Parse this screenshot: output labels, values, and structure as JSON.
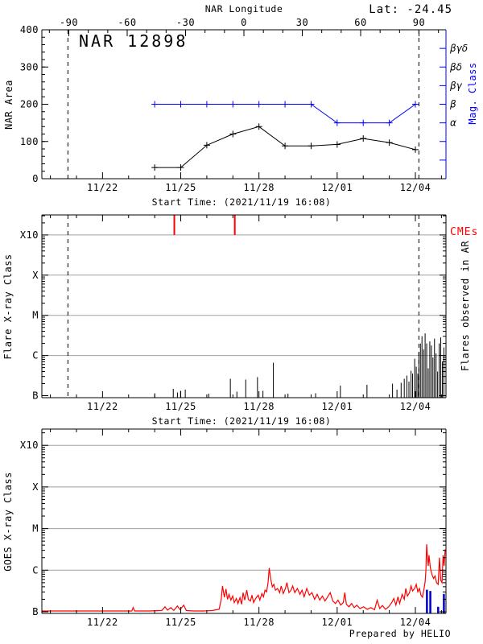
{
  "header": {
    "lat_label": "Lat: -24.45"
  },
  "footer": {
    "credit": "Prepared by HELIO"
  },
  "chart_data": [
    {
      "id": "nar_area_panel",
      "type": "line",
      "title": "NAR 12898",
      "ylabel": "NAR Area",
      "xlabel": "Start Time: (2021/11/19 16:08)",
      "ylim": [
        0,
        400
      ],
      "y_ticks": [
        0,
        100,
        200,
        300,
        400
      ],
      "y_minor_step": 20,
      "xlim_days": [
        0,
        15.5
      ],
      "x_ticks": [
        {
          "day": 2.327,
          "label": "11/22"
        },
        {
          "day": 5.327,
          "label": "11/25"
        },
        {
          "day": 8.327,
          "label": "11/28"
        },
        {
          "day": 11.327,
          "label": "12/01"
        },
        {
          "day": 14.327,
          "label": "12/04"
        }
      ],
      "x_minor_first": 0.327,
      "top_axis": {
        "label": "NAR Longitude",
        "ticks": [
          -90,
          -60,
          -30,
          0,
          30,
          60,
          90
        ],
        "minor_step": 10
      },
      "right_axis": {
        "label": "Mag. Class",
        "color": "#0000ff",
        "ticks": [
          {
            "value": 50,
            "label": ""
          },
          {
            "value": 100,
            "label": ""
          },
          {
            "value": 150,
            "label": "α"
          },
          {
            "value": 200,
            "label": "β"
          },
          {
            "value": 250,
            "label": "βγ"
          },
          {
            "value": 300,
            "label": "βδ"
          },
          {
            "value": 350,
            "label": "βγδ"
          }
        ]
      },
      "dashed_vlines_days": [
        1.0,
        14.46
      ],
      "series": [
        {
          "name": "NAR Area",
          "color": "#000000",
          "marker": "+",
          "x_days": [
            4.327,
            5.327,
            6.327,
            7.327,
            8.327,
            9.327,
            10.327,
            11.327,
            12.327,
            13.327,
            14.327
          ],
          "values": [
            30,
            30,
            90,
            120,
            140,
            88,
            88,
            92,
            108,
            97,
            78
          ]
        },
        {
          "name": "Magnetic Class",
          "color": "#0000ff",
          "marker": "+",
          "x_days": [
            4.327,
            5.327,
            6.327,
            7.327,
            8.327,
            9.327,
            10.327,
            11.327,
            12.327,
            13.327,
            14.327
          ],
          "values": [
            200,
            200,
            200,
            200,
            200,
            200,
            200,
            150,
            150,
            150,
            200
          ],
          "class_scale": {
            "150": "α",
            "200": "β",
            "250": "βγ",
            "300": "βδ",
            "350": "βγδ"
          }
        }
      ]
    },
    {
      "id": "flares_panel",
      "type": "bar",
      "ylabel": "Flare X-ray Class",
      "right_label": "Flares observed in AR",
      "xlabel": "Start Time: (2021/11/19 16:08)",
      "cme_label": "CMEs",
      "cme_color": "#ff0000",
      "flare_color": "#000000",
      "y_class_ticks": [
        "B",
        "C",
        "M",
        "X",
        "X10"
      ],
      "x_ticks": [
        {
          "day": 2.327,
          "label": "11/22"
        },
        {
          "day": 5.327,
          "label": "11/25"
        },
        {
          "day": 8.327,
          "label": "11/28"
        },
        {
          "day": 11.327,
          "label": "12/01"
        },
        {
          "day": 14.327,
          "label": "12/04"
        }
      ],
      "x_minor_first": 0.327,
      "dashed_vlines_days": [
        1.0,
        14.46
      ],
      "cme_days": [
        5.08,
        7.4
      ],
      "flares_day_height_decades": [
        [
          4.33,
          0.06
        ],
        [
          5.04,
          0.17
        ],
        [
          5.2,
          0.08
        ],
        [
          5.32,
          0.12
        ],
        [
          5.5,
          0.15
        ],
        [
          6.4,
          0.05
        ],
        [
          7.23,
          0.42
        ],
        [
          7.48,
          0.1
        ],
        [
          7.82,
          0.4
        ],
        [
          8.27,
          0.46
        ],
        [
          8.48,
          0.12
        ],
        [
          8.88,
          0.82
        ],
        [
          9.44,
          0.05
        ],
        [
          10.5,
          0.06
        ],
        [
          11.45,
          0.25
        ],
        [
          12.47,
          0.27
        ],
        [
          13.45,
          0.3
        ],
        [
          13.62,
          0.15
        ],
        [
          13.78,
          0.32
        ],
        [
          13.9,
          0.42
        ],
        [
          14.0,
          0.5
        ],
        [
          14.08,
          0.35
        ],
        [
          14.16,
          0.62
        ],
        [
          14.22,
          0.55
        ],
        [
          14.3,
          0.92
        ],
        [
          14.36,
          0.72
        ],
        [
          14.42,
          0.55
        ],
        [
          14.46,
          1.08
        ],
        [
          14.52,
          1.3
        ],
        [
          14.58,
          1.48
        ],
        [
          14.64,
          1.15
        ],
        [
          14.7,
          1.55
        ],
        [
          14.76,
          1.3
        ],
        [
          14.82,
          0.68
        ],
        [
          14.88,
          1.35
        ],
        [
          14.94,
          1.25
        ],
        [
          15.0,
          0.95
        ],
        [
          15.06,
          1.42
        ],
        [
          15.12,
          1.05
        ],
        [
          15.18,
          0.6
        ],
        [
          15.24,
          1.3
        ],
        [
          15.3,
          1.45
        ],
        [
          15.36,
          0.85
        ],
        [
          15.42,
          1.2
        ]
      ]
    },
    {
      "id": "goes_panel",
      "type": "line",
      "ylabel": "GOES X-ray Class",
      "curve_color": "#ff0000",
      "bars_color": "#0000cc",
      "y_class_ticks": [
        "B",
        "C",
        "M",
        "X",
        "X10"
      ],
      "x_ticks": [
        {
          "day": 2.327,
          "label": "11/22"
        },
        {
          "day": 5.327,
          "label": "11/25"
        },
        {
          "day": 8.327,
          "label": "11/28"
        },
        {
          "day": 11.327,
          "label": "12/01"
        },
        {
          "day": 14.327,
          "label": "12/04"
        }
      ],
      "x_minor_first": 0.327,
      "curve_day_height_decades": [
        [
          0,
          0.02
        ],
        [
          0.6,
          0.02
        ],
        [
          1.2,
          0.02
        ],
        [
          1.8,
          0.02
        ],
        [
          2.4,
          0.02
        ],
        [
          3.0,
          0.02
        ],
        [
          3.45,
          0.02
        ],
        [
          3.5,
          0.1
        ],
        [
          3.56,
          0.02
        ],
        [
          4.1,
          0.02
        ],
        [
          4.6,
          0.03
        ],
        [
          4.72,
          0.12
        ],
        [
          4.82,
          0.04
        ],
        [
          4.95,
          0.1
        ],
        [
          5.06,
          0.03
        ],
        [
          5.2,
          0.14
        ],
        [
          5.3,
          0.05
        ],
        [
          5.44,
          0.16
        ],
        [
          5.54,
          0.03
        ],
        [
          5.8,
          0.02
        ],
        [
          6.2,
          0.02
        ],
        [
          6.55,
          0.03
        ],
        [
          6.8,
          0.06
        ],
        [
          6.88,
          0.3
        ],
        [
          6.93,
          0.62
        ],
        [
          7.0,
          0.35
        ],
        [
          7.06,
          0.55
        ],
        [
          7.12,
          0.3
        ],
        [
          7.18,
          0.42
        ],
        [
          7.25,
          0.28
        ],
        [
          7.32,
          0.38
        ],
        [
          7.38,
          0.22
        ],
        [
          7.46,
          0.32
        ],
        [
          7.52,
          0.2
        ],
        [
          7.6,
          0.34
        ],
        [
          7.66,
          0.18
        ],
        [
          7.72,
          0.46
        ],
        [
          7.78,
          0.28
        ],
        [
          7.86,
          0.52
        ],
        [
          7.92,
          0.3
        ],
        [
          8.0,
          0.26
        ],
        [
          8.06,
          0.4
        ],
        [
          8.12,
          0.22
        ],
        [
          8.2,
          0.32
        ],
        [
          8.3,
          0.4
        ],
        [
          8.36,
          0.28
        ],
        [
          8.44,
          0.44
        ],
        [
          8.5,
          0.36
        ],
        [
          8.56,
          0.52
        ],
        [
          8.62,
          0.48
        ],
        [
          8.68,
          0.72
        ],
        [
          8.72,
          1.05
        ],
        [
          8.78,
          0.78
        ],
        [
          8.84,
          0.6
        ],
        [
          8.9,
          0.66
        ],
        [
          8.96,
          0.52
        ],
        [
          9.04,
          0.56
        ],
        [
          9.12,
          0.46
        ],
        [
          9.18,
          0.62
        ],
        [
          9.26,
          0.44
        ],
        [
          9.34,
          0.56
        ],
        [
          9.4,
          0.7
        ],
        [
          9.48,
          0.46
        ],
        [
          9.56,
          0.52
        ],
        [
          9.62,
          0.62
        ],
        [
          9.7,
          0.46
        ],
        [
          9.8,
          0.56
        ],
        [
          9.9,
          0.42
        ],
        [
          9.98,
          0.52
        ],
        [
          10.06,
          0.36
        ],
        [
          10.16,
          0.56
        ],
        [
          10.26,
          0.4
        ],
        [
          10.36,
          0.46
        ],
        [
          10.46,
          0.3
        ],
        [
          10.56,
          0.42
        ],
        [
          10.66,
          0.28
        ],
        [
          10.76,
          0.38
        ],
        [
          10.86,
          0.26
        ],
        [
          10.96,
          0.36
        ],
        [
          11.06,
          0.46
        ],
        [
          11.16,
          0.26
        ],
        [
          11.26,
          0.2
        ],
        [
          11.36,
          0.28
        ],
        [
          11.46,
          0.16
        ],
        [
          11.56,
          0.22
        ],
        [
          11.62,
          0.46
        ],
        [
          11.68,
          0.18
        ],
        [
          11.78,
          0.12
        ],
        [
          11.88,
          0.2
        ],
        [
          11.98,
          0.1
        ],
        [
          12.08,
          0.16
        ],
        [
          12.2,
          0.08
        ],
        [
          12.34,
          0.12
        ],
        [
          12.48,
          0.06
        ],
        [
          12.62,
          0.1
        ],
        [
          12.76,
          0.05
        ],
        [
          12.86,
          0.28
        ],
        [
          12.96,
          0.08
        ],
        [
          13.06,
          0.15
        ],
        [
          13.18,
          0.06
        ],
        [
          13.3,
          0.12
        ],
        [
          13.42,
          0.22
        ],
        [
          13.5,
          0.32
        ],
        [
          13.58,
          0.16
        ],
        [
          13.66,
          0.36
        ],
        [
          13.72,
          0.2
        ],
        [
          13.82,
          0.42
        ],
        [
          13.9,
          0.3
        ],
        [
          13.96,
          0.56
        ],
        [
          14.02,
          0.38
        ],
        [
          14.1,
          0.46
        ],
        [
          14.16,
          0.62
        ],
        [
          14.22,
          0.5
        ],
        [
          14.3,
          0.56
        ],
        [
          14.36,
          0.66
        ],
        [
          14.42,
          0.48
        ],
        [
          14.48,
          0.56
        ],
        [
          14.54,
          0.4
        ],
        [
          14.6,
          0.35
        ],
        [
          14.66,
          0.56
        ],
        [
          14.7,
          0.72
        ],
        [
          14.73,
          1.0
        ],
        [
          14.76,
          1.62
        ],
        [
          14.79,
          1.32
        ],
        [
          14.82,
          1.1
        ],
        [
          14.85,
          1.36
        ],
        [
          14.9,
          1.06
        ],
        [
          14.96,
          0.9
        ],
        [
          15.02,
          0.8
        ],
        [
          15.08,
          0.86
        ],
        [
          15.14,
          0.7
        ],
        [
          15.2,
          0.66
        ],
        [
          15.25,
          1.3
        ],
        [
          15.3,
          0.76
        ],
        [
          15.35,
          0.7
        ],
        [
          15.39,
          1.36
        ],
        [
          15.43,
          1.1
        ],
        [
          15.47,
          1.5
        ]
      ],
      "bars_day_height_decades": [
        [
          14.77,
          0.53
        ],
        [
          14.9,
          0.5
        ],
        [
          15.2,
          0.12
        ],
        [
          15.42,
          0.43
        ]
      ]
    }
  ]
}
